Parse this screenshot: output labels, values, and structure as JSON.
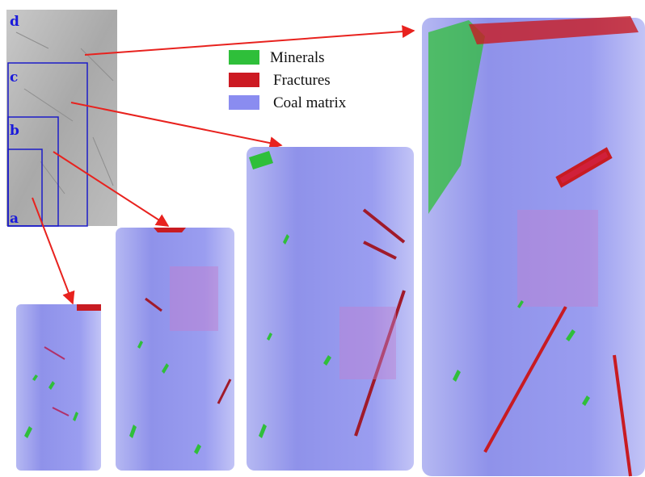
{
  "figure": {
    "subset_labels": [
      "a",
      "b",
      "c",
      "d"
    ],
    "legend": [
      "Minerals",
      "Fractures",
      "Coal matrix"
    ]
  }
}
